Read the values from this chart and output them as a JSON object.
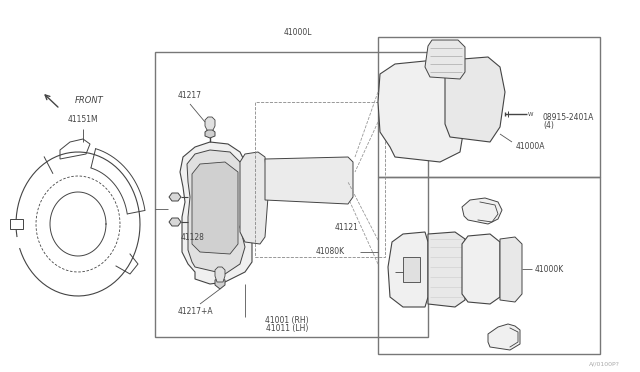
{
  "bg_color": "#ffffff",
  "line_color": "#444444",
  "fig_width": 6.4,
  "fig_height": 3.72,
  "dpi": 100,
  "labels": {
    "41001_RH": "41001 (RH)",
    "41011_LH": "41011 (LH)",
    "41217A": "41217+A",
    "41128": "41128",
    "41217": "41217",
    "41121": "41121",
    "41000L": "41000L",
    "41080K": "41080K",
    "41000K": "41000K",
    "41000A": "41000A",
    "08915": "08915-2401A",
    "08915b": "(4)",
    "41151M": "41151M",
    "front": "FRONT",
    "part_no": "A//0100P?"
  }
}
